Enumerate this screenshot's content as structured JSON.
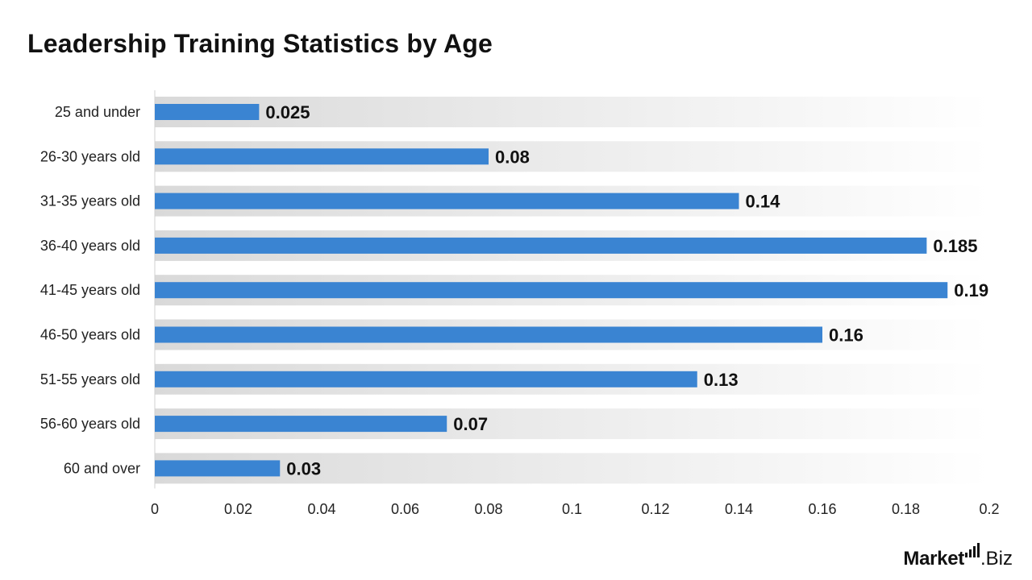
{
  "chart_data": {
    "type": "bar",
    "orientation": "horizontal",
    "title": "Leadership Training Statistics by Age",
    "categories": [
      "25 and under",
      "26-30 years old",
      "31-35 years old",
      "36-40 years old",
      "41-45 years old",
      "46-50 years old",
      "51-55 years old",
      "56-60 years old",
      "60 and over"
    ],
    "values": [
      0.025,
      0.08,
      0.14,
      0.185,
      0.19,
      0.16,
      0.13,
      0.07,
      0.03
    ],
    "value_labels": [
      "0.025",
      "0.08",
      "0.14",
      "0.185",
      "0.19",
      "0.16",
      "0.13",
      "0.07",
      "0.03"
    ],
    "xlim": [
      0,
      0.2
    ],
    "xticks": [
      0,
      0.02,
      0.04,
      0.06,
      0.08,
      0.1,
      0.12,
      0.14,
      0.16,
      0.18,
      0.2
    ],
    "xtick_labels": [
      "0",
      "0.02",
      "0.04",
      "0.06",
      "0.08",
      "0.1",
      "0.12",
      "0.14",
      "0.16",
      "0.18",
      "0.2"
    ],
    "xlabel": "",
    "ylabel": "",
    "grid": false,
    "legend": "none",
    "bar_color": "#3a84d2"
  },
  "brand": {
    "strong": "Market",
    "light": ".Biz"
  }
}
